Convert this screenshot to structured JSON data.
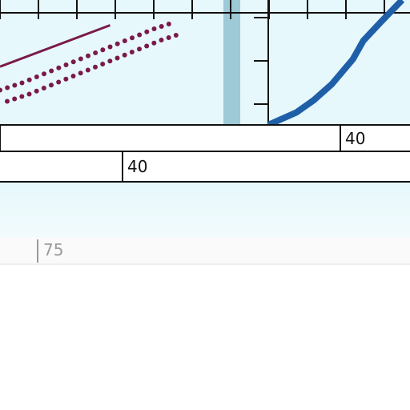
{
  "colors": {
    "plot_background": "#e6f8fc",
    "fade_background": "#eefbfd",
    "page_background": "#ffffff",
    "band": "#9ec9d6",
    "line_maroon": "#7a1a4a",
    "line_blue": "#1f5fa8",
    "axis": "#111111",
    "faded_axis": "#9a9a9a"
  },
  "chart_data": [
    {
      "type": "line",
      "title": "",
      "xlabel": "",
      "ylabel": "",
      "grid": false,
      "legend": "none",
      "series": [
        {
          "style": "solid",
          "color": "#7a1a4a",
          "x": [
            0,
            2.5
          ],
          "y": [
            2.15,
            3.3
          ]
        },
        {
          "style": "dotted",
          "color": "#7a1a4a",
          "x": [
            0,
            0.5,
            1.0,
            1.5,
            2.0,
            2.5,
            3.0,
            3.5,
            4.0
          ],
          "y": [
            1.5,
            1.7,
            1.95,
            2.2,
            2.45,
            2.7,
            2.95,
            3.2,
            3.4
          ]
        }
      ]
    },
    {
      "type": "line",
      "title": "",
      "xlabel": "",
      "ylabel": "",
      "grid": false,
      "legend": "none",
      "series": [
        {
          "style": "solid",
          "color": "#1f5fa8",
          "x": [
            0,
            0.8,
            1.3,
            1.8,
            2.4,
            2.7,
            3.2,
            3.8
          ],
          "y": [
            0,
            0.4,
            0.8,
            1.3,
            2.1,
            2.7,
            3.3,
            4.0
          ]
        }
      ]
    },
    {
      "type": "table",
      "tick_labels": [
        "40",
        "40",
        "75"
      ]
    }
  ]
}
